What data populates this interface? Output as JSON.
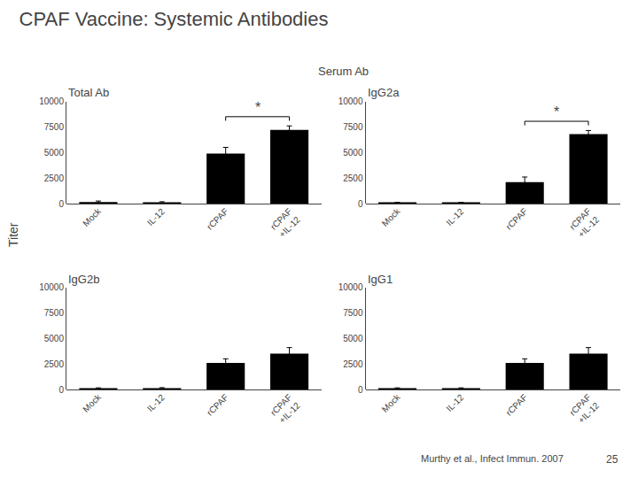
{
  "title": "CPAF Vaccine: Systemic Antibodies",
  "subtitle": "Serum Ab",
  "ylabel": "Titer",
  "annotations": [
    "Murthy et al., Infect Immun. 2007",
    "25"
  ],
  "chart_data": [
    {
      "type": "bar",
      "title": "Total Ab",
      "categories": [
        "Mock",
        "IL-12",
        "rCPAF",
        "rCPAF\n+IL-12"
      ],
      "values": [
        150,
        100,
        4900,
        7200
      ],
      "errors": [
        100,
        80,
        600,
        400
      ],
      "color": "#000000",
      "ylim": [
        0,
        10000
      ],
      "yticks": [
        0,
        2500,
        5000,
        7500,
        10000
      ],
      "grid": false,
      "annotations": [
        {
          "text": "*",
          "between": [
            "rCPAF",
            "rCPAF\n+IL-12"
          ]
        }
      ]
    },
    {
      "type": "bar",
      "title": "IgG2a",
      "categories": [
        "Mock",
        "IL-12",
        "rCPAF",
        "rCPAF\n+IL-12"
      ],
      "values": [
        80,
        80,
        2100,
        6800
      ],
      "errors": [
        50,
        50,
        500,
        350
      ],
      "color": "#000000",
      "ylim": [
        0,
        10000
      ],
      "yticks": [
        0,
        2500,
        5000,
        7500,
        10000
      ],
      "grid": false,
      "annotations": [
        {
          "text": "*",
          "between": [
            "rCPAF",
            "rCPAF\n+IL-12"
          ]
        }
      ]
    },
    {
      "type": "bar",
      "title": "IgG2b",
      "categories": [
        "Mock",
        "IL-12",
        "rCPAF",
        "rCPAF\n+IL-12"
      ],
      "values": [
        100,
        120,
        2600,
        3500
      ],
      "errors": [
        60,
        60,
        400,
        600
      ],
      "color": "#000000",
      "ylim": [
        0,
        10000
      ],
      "yticks": [
        0,
        2500,
        5000,
        7500,
        10000
      ],
      "grid": false
    },
    {
      "type": "bar",
      "title": "IgG1",
      "categories": [
        "Mock",
        "IL-12",
        "rCPAF",
        "rCPAF\n+IL-12"
      ],
      "values": [
        100,
        100,
        2600,
        3500
      ],
      "errors": [
        60,
        60,
        400,
        600
      ],
      "color": "#000000",
      "ylim": [
        0,
        10000
      ],
      "yticks": [
        0,
        2500,
        5000,
        7500,
        10000
      ],
      "grid": false
    }
  ]
}
